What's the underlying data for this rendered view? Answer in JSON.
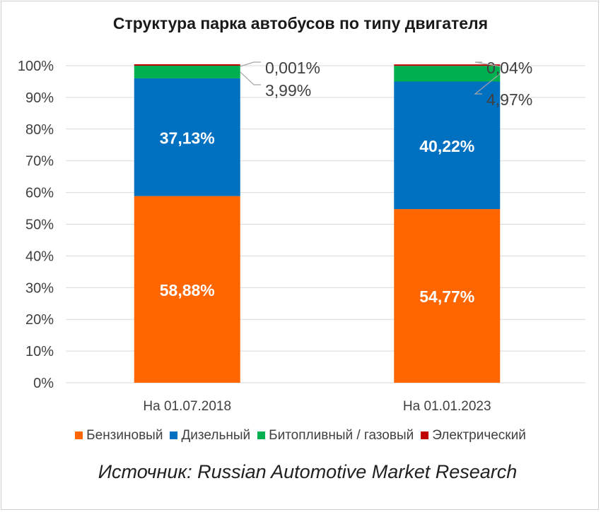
{
  "chart_data": {
    "type": "bar",
    "stacked": true,
    "title": "Структура парка автобусов по типу двигателя",
    "categories": [
      "На 01.07.2018",
      "На 01.01.2023"
    ],
    "ylim": [
      0,
      100
    ],
    "yticks": [
      "0%",
      "10%",
      "20%",
      "30%",
      "40%",
      "50%",
      "60%",
      "70%",
      "80%",
      "90%",
      "100%"
    ],
    "grid": true,
    "legend_position": "bottom",
    "series": [
      {
        "name": "Бензиновый",
        "color": "#FF6600",
        "values": [
          58.88,
          54.77
        ],
        "labels": [
          "58,88%",
          "54,77%"
        ]
      },
      {
        "name": "Дизельный",
        "color": "#0070C0",
        "values": [
          37.13,
          40.22
        ],
        "labels": [
          "37,13%",
          "40,22%"
        ]
      },
      {
        "name": "Битопливный / газовый",
        "color": "#00B050",
        "values": [
          3.99,
          4.97
        ],
        "labels": [
          "3,99%",
          "4,97%"
        ]
      },
      {
        "name": "Электрический",
        "color": "#C00000",
        "values": [
          0.001,
          0.04
        ],
        "labels": [
          "0,001%",
          "0,04%"
        ]
      }
    ]
  },
  "source": "Источник: Russian Automotive Market Research"
}
